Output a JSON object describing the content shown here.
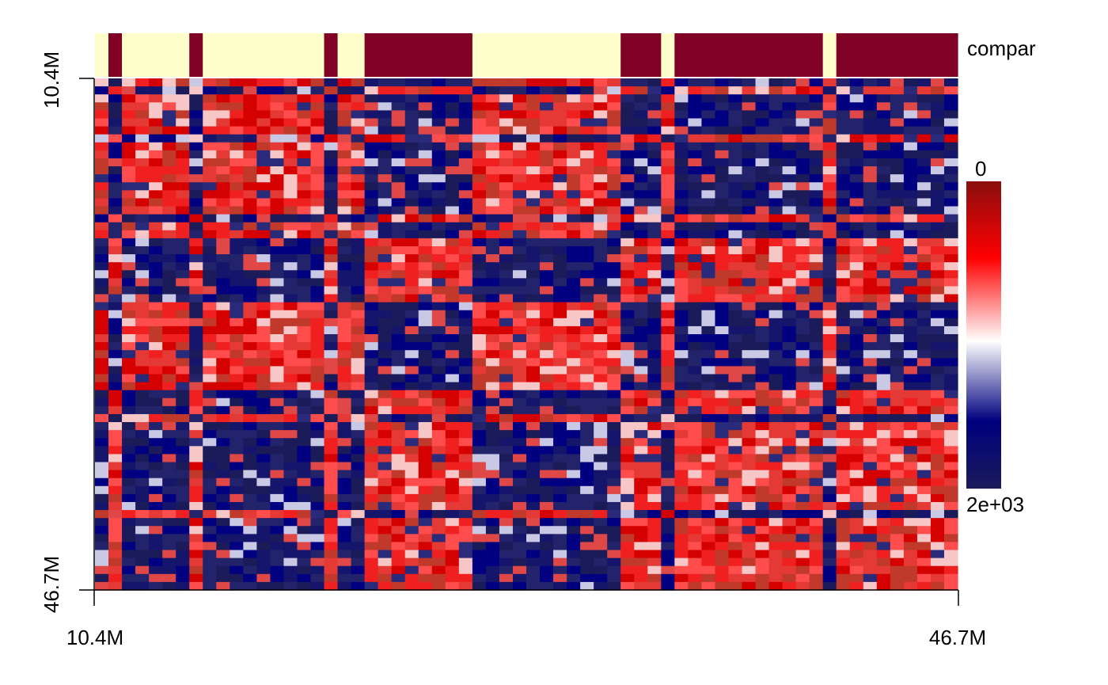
{
  "chart_data": {
    "type": "heatmap",
    "title": "",
    "x_range": [
      "10.4M",
      "46.7M"
    ],
    "y_range": [
      "10.4M",
      "46.7M"
    ],
    "x_ticks": [
      "10.4M",
      "46.7M"
    ],
    "y_ticks": [
      "10.4M",
      "46.7M"
    ],
    "compartment_track_label": "compar",
    "compartment_colors": {
      "A": "#ffffcc",
      "B": "#800026"
    },
    "compartment_bins": [
      "A",
      "B",
      "A",
      "A",
      "A",
      "A",
      "A",
      "B",
      "A",
      "A",
      "A",
      "A",
      "A",
      "A",
      "A",
      "A",
      "A",
      "B",
      "A",
      "A",
      "B",
      "B",
      "B",
      "B",
      "B",
      "B",
      "B",
      "B",
      "A",
      "A",
      "A",
      "A",
      "A",
      "A",
      "A",
      "A",
      "A",
      "A",
      "A",
      "B",
      "B",
      "B",
      "A",
      "B",
      "B",
      "B",
      "B",
      "B",
      "B",
      "B",
      "B",
      "B",
      "B",
      "B",
      "A",
      "B",
      "B",
      "B",
      "B",
      "B",
      "B",
      "B",
      "B",
      "B"
    ],
    "colorscale": {
      "top_label": "0",
      "bottom_label": "2e+03",
      "stops": [
        "#8b0e0e",
        "#ff0000",
        "#ffffff",
        "#00007f",
        "#1b1b5a"
      ]
    },
    "grid": false
  }
}
